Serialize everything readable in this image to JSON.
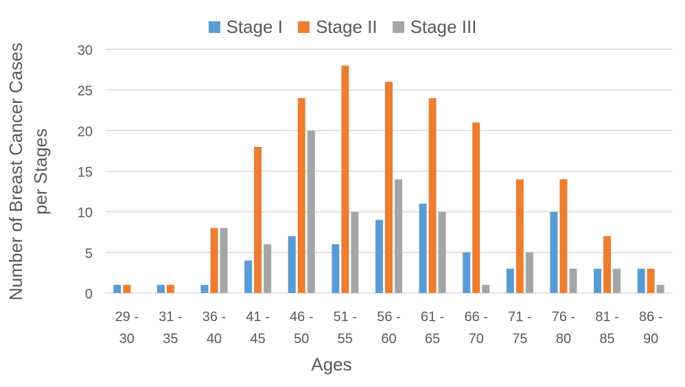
{
  "chart_data": {
    "type": "bar",
    "title": "",
    "xlabel": "Ages",
    "ylabel_line1": "Number of  Breast Cancer Cases",
    "ylabel_line2": "per Stages",
    "ylim": [
      0,
      30
    ],
    "yticks": [
      0,
      5,
      10,
      15,
      20,
      25,
      30
    ],
    "grid": true,
    "legend_position": "top",
    "categories": [
      [
        "29 -",
        "30"
      ],
      [
        "31 -",
        "35"
      ],
      [
        "36 -",
        "40"
      ],
      [
        "41 -",
        "45"
      ],
      [
        "46 -",
        "50"
      ],
      [
        "51 -",
        "55"
      ],
      [
        "56 -",
        "60"
      ],
      [
        "61 -",
        "65"
      ],
      [
        "66 -",
        "70"
      ],
      [
        "71 -",
        "75"
      ],
      [
        "76 -",
        "80"
      ],
      [
        "81 -",
        "85"
      ],
      [
        "86 -",
        "90"
      ]
    ],
    "series": [
      {
        "name": "Stage I",
        "color": "#5B9BD5",
        "values": [
          1,
          1,
          1,
          4,
          7,
          6,
          9,
          11,
          5,
          3,
          10,
          3,
          3
        ]
      },
      {
        "name": "Stage II",
        "color": "#ED7D31",
        "values": [
          1,
          1,
          8,
          18,
          24,
          28,
          26,
          24,
          21,
          14,
          14,
          7,
          3
        ]
      },
      {
        "name": "Stage III",
        "color": "#A5A5A5",
        "values": [
          0,
          0,
          8,
          6,
          20,
          10,
          14,
          10,
          1,
          5,
          3,
          3,
          1
        ]
      }
    ]
  }
}
